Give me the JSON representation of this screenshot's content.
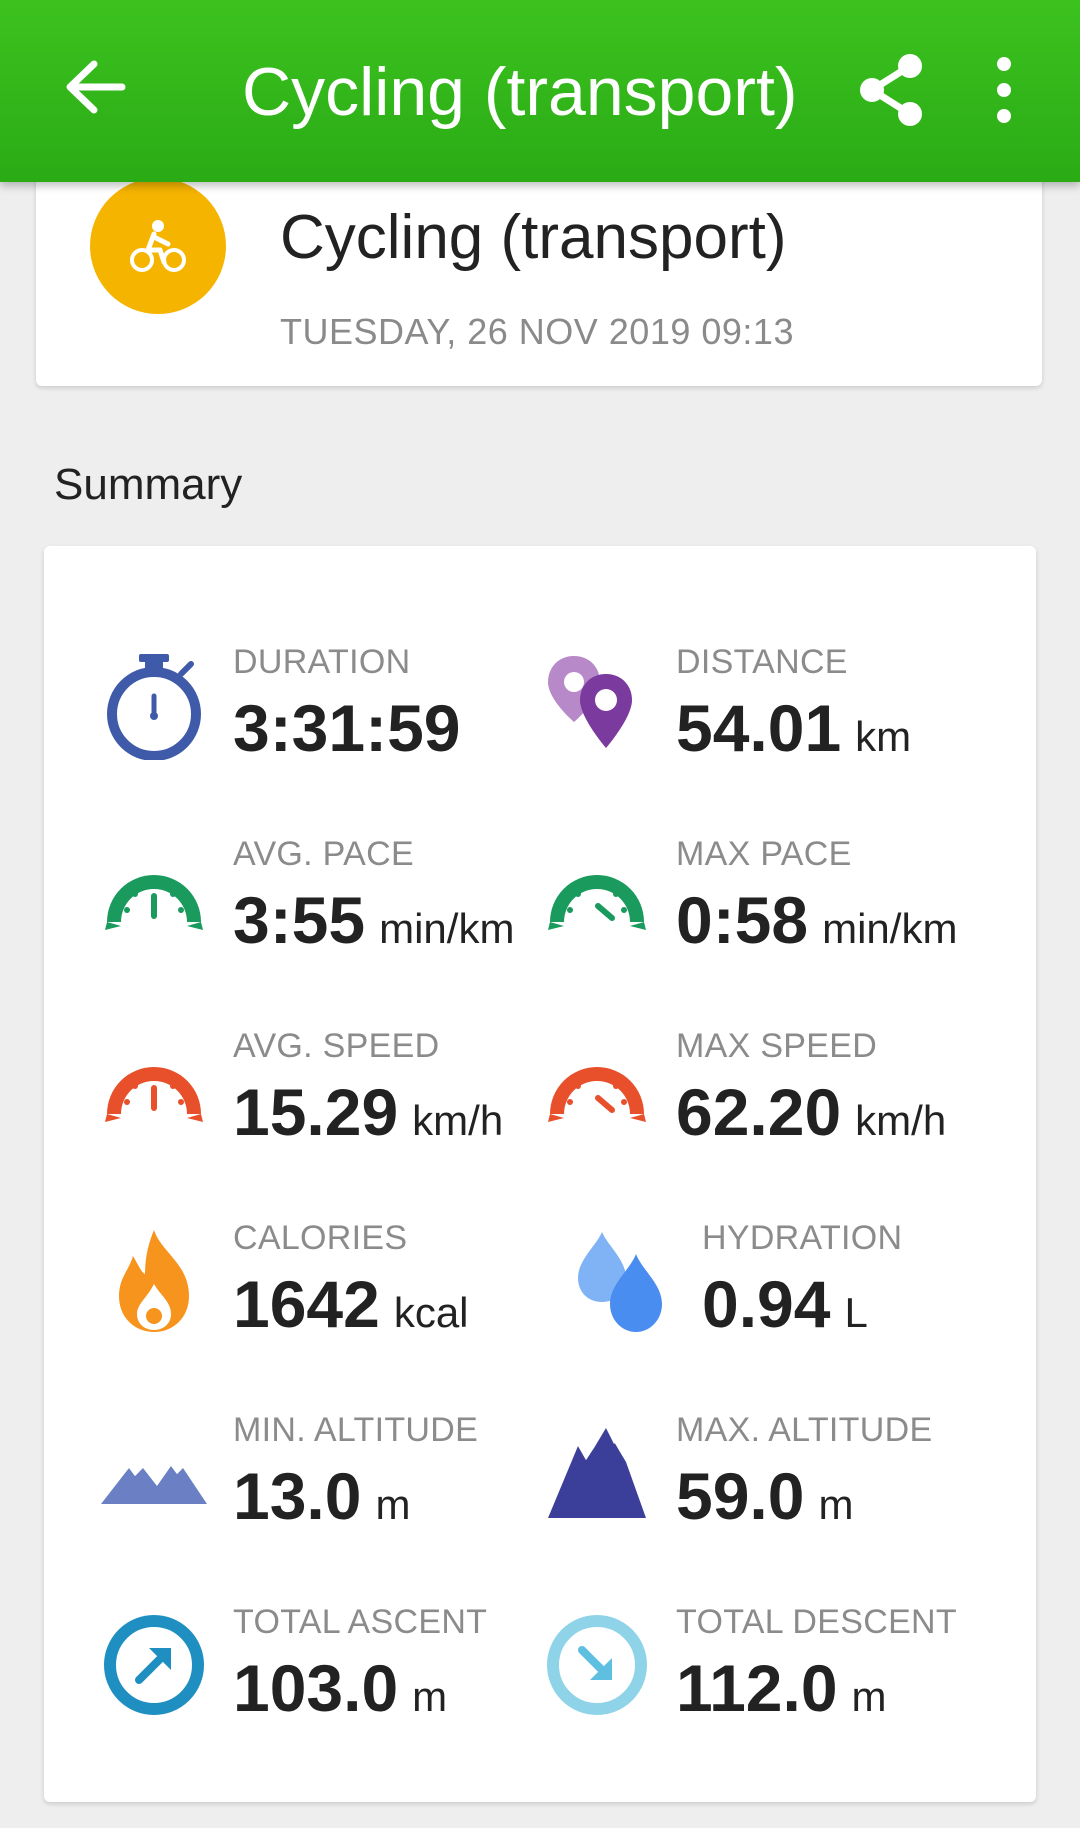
{
  "appbar": {
    "title": "Cycling (transport)",
    "back_icon": "arrow-left-icon",
    "share_icon": "share-icon",
    "more_icon": "more-vertical-icon"
  },
  "workout": {
    "title": "Cycling (transport)",
    "date": "TUESDAY, 26 NOV 2019 09:13",
    "icon": "bicycle-icon",
    "icon_color": "#f5b400"
  },
  "summary": {
    "title": "Summary",
    "stats": {
      "duration": {
        "label": "DURATION",
        "value": "3:31:59",
        "unit": ""
      },
      "distance": {
        "label": "DISTANCE",
        "value": "54.01",
        "unit": "km"
      },
      "avg_pace": {
        "label": "AVG. PACE",
        "value": "3:55",
        "unit": "min/km"
      },
      "max_pace": {
        "label": "MAX PACE",
        "value": "0:58",
        "unit": "min/km"
      },
      "avg_speed": {
        "label": "AVG. SPEED",
        "value": "15.29",
        "unit": "km/h"
      },
      "max_speed": {
        "label": "MAX SPEED",
        "value": "62.20",
        "unit": "km/h"
      },
      "calories": {
        "label": "CALORIES",
        "value": "1642",
        "unit": "kcal"
      },
      "hydration": {
        "label": "HYDRATION",
        "value": "0.94",
        "unit": "L"
      },
      "min_altitude": {
        "label": "MIN. ALTITUDE",
        "value": "13.0",
        "unit": "m"
      },
      "max_altitude": {
        "label": "MAX. ALTITUDE",
        "value": "59.0",
        "unit": "m"
      },
      "total_ascent": {
        "label": "TOTAL ASCENT",
        "value": "103.0",
        "unit": "m"
      },
      "total_descent": {
        "label": "TOTAL DESCENT",
        "value": "112.0",
        "unit": "m"
      }
    }
  },
  "colors": {
    "appbar": "#2eb318",
    "duration": "#3f5aa8",
    "distance": "#7b3a9e",
    "pace": "#1a9a5c",
    "speed": "#e8502b",
    "calories": "#f7941d",
    "hydration": "#4a8df0",
    "altitude": "#3c3f9a",
    "ascent": "#1f8fc2",
    "descent": "#8fd3e8"
  }
}
